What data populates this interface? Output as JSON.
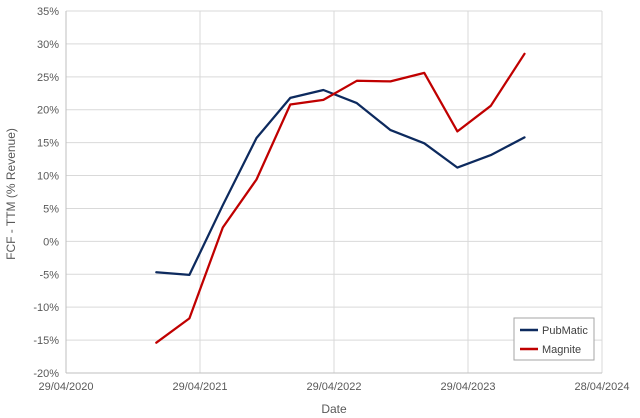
{
  "chart_data": {
    "type": "line",
    "title": "",
    "xlabel": "Date",
    "ylabel": "FCF - TTM (% Revenue)",
    "x_is_date": true,
    "xlim": [
      "2020-04-29",
      "2024-04-28"
    ],
    "ylim": [
      -20,
      35
    ],
    "x_ticks": [
      {
        "date": "2020-04-29",
        "label": "29/04/2020"
      },
      {
        "date": "2021-04-29",
        "label": "29/04/2021"
      },
      {
        "date": "2022-04-29",
        "label": "29/04/2022"
      },
      {
        "date": "2023-04-29",
        "label": "29/04/2023"
      },
      {
        "date": "2024-04-28",
        "label": "28/04/2024"
      }
    ],
    "y_ticks": [
      {
        "value": -20,
        "label": "-20%"
      },
      {
        "value": -15,
        "label": "-15%"
      },
      {
        "value": -10,
        "label": "-10%"
      },
      {
        "value": -5,
        "label": "-5%"
      },
      {
        "value": 0,
        "label": "0%"
      },
      {
        "value": 5,
        "label": "5%"
      },
      {
        "value": 10,
        "label": "10%"
      },
      {
        "value": 15,
        "label": "15%"
      },
      {
        "value": 20,
        "label": "20%"
      },
      {
        "value": 25,
        "label": "25%"
      },
      {
        "value": 30,
        "label": "30%"
      },
      {
        "value": 35,
        "label": "35%"
      }
    ],
    "grid": true,
    "legend_position": "bottom-right",
    "series": [
      {
        "name": "PubMatic",
        "color": "#0d2a5e",
        "points": [
          {
            "x": "2020-12-31",
            "y": -4.7
          },
          {
            "x": "2021-03-31",
            "y": -5.1
          },
          {
            "x": "2021-06-30",
            "y": 5.5
          },
          {
            "x": "2021-09-30",
            "y": 15.7
          },
          {
            "x": "2021-12-31",
            "y": 21.8
          },
          {
            "x": "2022-03-31",
            "y": 23.0
          },
          {
            "x": "2022-06-30",
            "y": 21.0
          },
          {
            "x": "2022-09-30",
            "y": 16.9
          },
          {
            "x": "2022-12-31",
            "y": 14.9
          },
          {
            "x": "2023-03-31",
            "y": 11.2
          },
          {
            "x": "2023-06-30",
            "y": 13.1
          },
          {
            "x": "2023-09-30",
            "y": 15.8
          }
        ]
      },
      {
        "name": "Magnite",
        "color": "#c00000",
        "points": [
          {
            "x": "2020-12-31",
            "y": -15.4
          },
          {
            "x": "2021-03-31",
            "y": -11.7
          },
          {
            "x": "2021-06-30",
            "y": 2.1
          },
          {
            "x": "2021-09-30",
            "y": 9.4
          },
          {
            "x": "2021-12-31",
            "y": 20.8
          },
          {
            "x": "2022-03-31",
            "y": 21.5
          },
          {
            "x": "2022-06-30",
            "y": 24.4
          },
          {
            "x": "2022-09-30",
            "y": 24.3
          },
          {
            "x": "2022-12-31",
            "y": 25.6
          },
          {
            "x": "2023-03-31",
            "y": 16.7
          },
          {
            "x": "2023-06-30",
            "y": 20.6
          },
          {
            "x": "2023-09-30",
            "y": 28.5
          }
        ]
      }
    ]
  }
}
